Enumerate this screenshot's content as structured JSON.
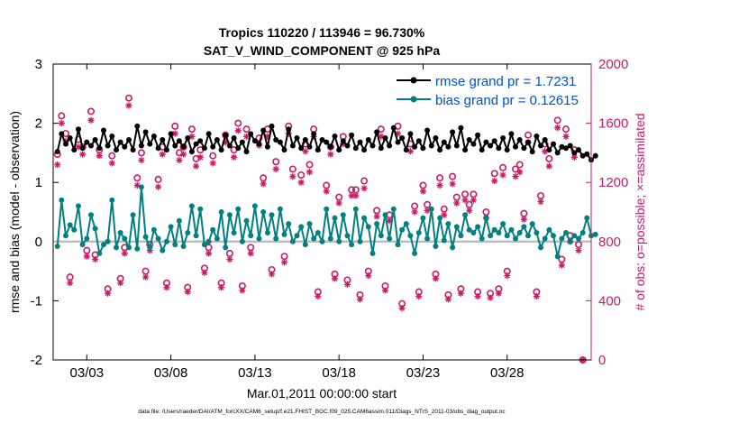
{
  "chart_data": {
    "type": "line",
    "title": "Tropics 110220 / 113946 = 96.730%",
    "subtitle": "SAT_V_WIND_COMPONENT @ 925 hPa",
    "xlabel": "Mar.01,2011 00:00:00 start",
    "ylabel": "rmse and bias (model - observation)",
    "y2label": "# of obs: o=possible; ×=assimilated",
    "footnote": "data file: /Users/raeder/DAI/ATM_forcXX/CAM6_setup/f.e21.FHIST_BGC.f09_025.CAM6assim.011/Diags_NTrS_2011-03/obs_diag_output.nc",
    "xlim": [
      1.0,
      33.0
    ],
    "ylim": [
      -2,
      3
    ],
    "y2lim": [
      0,
      2000
    ],
    "x_ticks": [
      3,
      8,
      13,
      18,
      23,
      28
    ],
    "x_tick_labels": [
      "03/03",
      "03/08",
      "03/13",
      "03/18",
      "03/23",
      "03/28"
    ],
    "y_ticks": [
      -2,
      -1,
      0,
      1,
      2,
      3
    ],
    "y_tick_labels": [
      "-2",
      "-1",
      "0",
      "1",
      "2",
      "3"
    ],
    "y2_ticks": [
      0,
      400,
      800,
      1200,
      1600,
      2000
    ],
    "y2_tick_labels": [
      "0",
      "400",
      "800",
      "1200",
      "1600",
      "2000"
    ],
    "x_start": 1.25,
    "x_step": 0.25,
    "series": [
      {
        "name": "rmse grand pr = 1.7231",
        "color": "#000000",
        "axis": "left",
        "values": [
          1.52,
          1.82,
          1.65,
          1.75,
          1.55,
          1.9,
          1.58,
          1.68,
          1.62,
          1.72,
          1.58,
          1.88,
          1.62,
          1.78,
          1.55,
          1.68,
          1.6,
          1.72,
          1.55,
          1.95,
          1.62,
          1.85,
          1.65,
          1.78,
          1.58,
          1.72,
          1.55,
          1.82,
          1.62,
          1.7,
          1.6,
          1.75,
          1.52,
          1.65,
          1.7,
          1.58,
          1.82,
          1.6,
          1.72,
          1.55,
          1.8,
          1.62,
          1.75,
          1.58,
          1.68,
          1.52,
          1.82,
          1.7,
          1.65,
          1.88,
          1.6,
          1.95,
          1.72,
          1.68,
          1.55,
          1.9,
          1.62,
          1.75,
          1.58,
          1.72,
          1.6,
          1.82,
          1.55,
          1.72,
          1.68,
          1.6,
          1.78,
          1.55,
          1.7,
          1.62,
          1.8,
          1.58,
          1.68,
          1.55,
          1.72,
          1.62,
          1.85,
          1.58,
          1.75,
          1.62,
          1.92,
          1.68,
          1.75,
          1.55,
          1.82,
          1.6,
          1.7,
          1.58,
          1.88,
          1.62,
          1.75,
          1.55,
          1.68,
          1.6,
          1.85,
          1.62,
          1.92,
          1.55,
          1.72,
          1.65,
          1.8,
          1.55,
          1.68,
          1.62,
          1.7,
          1.58,
          1.75,
          1.55,
          1.82,
          1.6,
          1.72,
          1.58,
          1.68,
          1.52,
          1.78,
          1.62,
          1.72,
          1.55,
          1.65,
          1.5,
          1.6,
          1.58,
          1.62,
          1.5,
          1.55,
          1.45,
          1.48,
          1.38,
          1.45
        ]
      },
      {
        "name": "bias grand pr = 0.12615",
        "color": "#008080",
        "axis": "left",
        "values": [
          -0.08,
          0.7,
          0.1,
          0.28,
          0.2,
          0.6,
          -0.05,
          0.05,
          0.45,
          0.22,
          -0.2,
          -0.05,
          0.0,
          0.7,
          -0.1,
          0.15,
          0.05,
          -0.1,
          0.45,
          -0.12,
          0.92,
          0.08,
          -0.1,
          0.2,
          0.05,
          -0.15,
          0.0,
          0.25,
          -0.05,
          0.35,
          -0.08,
          0.15,
          0.6,
          0.1,
          0.55,
          -0.05,
          0.0,
          0.2,
          0.05,
          0.5,
          -0.1,
          0.45,
          0.15,
          0.55,
          0.0,
          0.35,
          0.1,
          0.6,
          0.05,
          0.5,
          0.15,
          0.45,
          0.05,
          0.55,
          0.12,
          0.3,
          0.0,
          0.1,
          0.25,
          -0.05,
          0.3,
          0.05,
          0.15,
          0.0,
          0.55,
          0.05,
          0.4,
          0.0,
          0.45,
          0.1,
          -0.05,
          0.55,
          0.0,
          0.4,
          0.25,
          -0.2,
          0.3,
          0.1,
          0.45,
          0.05,
          0.55,
          -0.05,
          0.2,
          0.3,
          0.1,
          -0.2,
          0.15,
          0.4,
          0.05,
          0.55,
          -0.08,
          0.4,
          0.02,
          0.3,
          -0.1,
          0.25,
          0.1,
          0.45,
          0.2,
          0.15,
          0.25,
          0.05,
          0.4,
          0.1,
          0.2,
          0.15,
          0.3,
          0.1,
          0.2,
          0.05,
          0.15,
          0.25,
          0.1,
          0.3,
          0.15,
          -0.1,
          0.05,
          0.2,
          0.1,
          -0.25,
          0.05,
          0.15,
          0.0,
          0.1,
          0.05,
          0.15,
          0.4,
          0.1,
          0.12
        ]
      }
    ],
    "obs_possible": {
      "name": "possible",
      "marker": "o",
      "color": "#cc1a66",
      "x": [
        1.25,
        1.5,
        1.75,
        2.0,
        2.5,
        2.75,
        3.0,
        3.25,
        3.5,
        3.75,
        4.25,
        4.5,
        5.0,
        5.25,
        5.5,
        6.0,
        6.25,
        6.5,
        6.75,
        7.25,
        7.5,
        7.75,
        8.25,
        8.5,
        8.75,
        9.0,
        9.25,
        9.5,
        9.75,
        10.0,
        10.25,
        10.5,
        11.0,
        11.25,
        11.5,
        11.75,
        12.0,
        12.25,
        12.5,
        12.75,
        13.25,
        13.5,
        13.75,
        14.0,
        14.25,
        14.75,
        15.0,
        15.25,
        15.75,
        16.0,
        16.25,
        16.5,
        16.75,
        17.25,
        17.5,
        17.75,
        18.0,
        18.25,
        18.5,
        18.75,
        19.0,
        19.25,
        19.5,
        19.75,
        20.25,
        20.5,
        20.75,
        21.0,
        21.5,
        21.75,
        22.25,
        22.5,
        22.75,
        23.0,
        23.25,
        23.75,
        24.0,
        24.25,
        24.5,
        24.75,
        25.0,
        25.25,
        25.5,
        25.75,
        26.0,
        26.25,
        26.75,
        27.0,
        27.25,
        27.5,
        27.75,
        28.0,
        28.5,
        28.75,
        29.0,
        29.25,
        29.75,
        30.0,
        30.25,
        30.5,
        31.0,
        31.25,
        31.5,
        31.75,
        32.0,
        32.25,
        32.5
      ],
      "y": [
        1390,
        1650,
        1530,
        560,
        1490,
        1440,
        740,
        1680,
        710,
        1420,
        480,
        1380,
        550,
        760,
        1770,
        1230,
        1400,
        600,
        780,
        1220,
        1440,
        520,
        1580,
        1400,
        1440,
        490,
        1560,
        1360,
        1420,
        620,
        760,
        1380,
        520,
        1520,
        720,
        1420,
        1600,
        500,
        1560,
        760,
        1500,
        1230,
        1560,
        610,
        1340,
        700,
        1580,
        1290,
        1250,
        1460,
        1320,
        1560,
        460,
        1180,
        1440,
        580,
        1100,
        1510,
        540,
        1150,
        1150,
        440,
        1210,
        600,
        1010,
        1560,
        500,
        980,
        1580,
        380,
        1460,
        1040,
        460,
        1180,
        1050,
        580,
        1230,
        1020,
        440,
        1240,
        1100,
        480,
        1120,
        1050,
        1120,
        460,
        1000,
        450,
        1260,
        480,
        1300,
        600,
        1290,
        1320,
        990,
        1520,
        460,
        1110,
        1460,
        1360,
        1620,
        680,
        1560,
        840,
        1420,
        780,
        0
      ]
    },
    "obs_assimilated": {
      "name": "assimilated",
      "marker": "*",
      "color": "#cc1a66",
      "x": [
        1.25,
        1.5,
        1.75,
        2.0,
        2.5,
        2.75,
        3.0,
        3.25,
        3.5,
        3.75,
        4.25,
        4.5,
        5.0,
        5.25,
        5.5,
        6.0,
        6.25,
        6.5,
        6.75,
        7.25,
        7.5,
        7.75,
        8.25,
        8.5,
        8.75,
        9.0,
        9.25,
        9.5,
        9.75,
        10.0,
        10.25,
        10.5,
        11.0,
        11.25,
        11.5,
        11.75,
        12.0,
        12.25,
        12.5,
        12.75,
        13.25,
        13.5,
        13.75,
        14.0,
        14.25,
        14.75,
        15.0,
        15.25,
        15.75,
        16.0,
        16.25,
        16.5,
        16.75,
        17.25,
        17.5,
        17.75,
        18.0,
        18.25,
        18.5,
        18.75,
        19.0,
        19.25,
        19.5,
        19.75,
        20.25,
        20.5,
        20.75,
        21.0,
        21.5,
        21.75,
        22.25,
        22.5,
        22.75,
        23.0,
        23.25,
        23.75,
        24.0,
        24.25,
        24.5,
        24.75,
        25.0,
        25.25,
        25.5,
        25.75,
        26.0,
        26.25,
        26.75,
        27.0,
        27.25,
        27.5,
        27.75,
        28.0,
        28.5,
        28.75,
        29.0,
        29.25,
        29.75,
        30.0,
        30.25,
        30.5,
        31.0,
        31.25,
        31.5,
        31.75,
        32.0,
        32.25,
        32.5
      ],
      "y": [
        1320,
        1600,
        1480,
        520,
        1440,
        1390,
        700,
        1620,
        680,
        1380,
        450,
        1330,
        520,
        720,
        1720,
        1180,
        1350,
        560,
        740,
        1170,
        1390,
        490,
        1530,
        1350,
        1390,
        460,
        1510,
        1310,
        1370,
        590,
        720,
        1330,
        490,
        1470,
        680,
        1370,
        1550,
        470,
        1510,
        720,
        1450,
        1190,
        1510,
        580,
        1290,
        660,
        1530,
        1240,
        1200,
        1410,
        1270,
        1510,
        430,
        1140,
        1390,
        550,
        1060,
        1460,
        510,
        1110,
        1110,
        410,
        1160,
        570,
        970,
        1510,
        470,
        940,
        1530,
        350,
        1410,
        1000,
        430,
        1140,
        1010,
        550,
        1180,
        980,
        410,
        1190,
        1060,
        450,
        1080,
        1010,
        1080,
        430,
        960,
        420,
        1210,
        450,
        1250,
        570,
        1240,
        1270,
        950,
        1470,
        430,
        1070,
        1410,
        1310,
        1570,
        640,
        1510,
        800,
        1370,
        740,
        0
      ]
    }
  }
}
